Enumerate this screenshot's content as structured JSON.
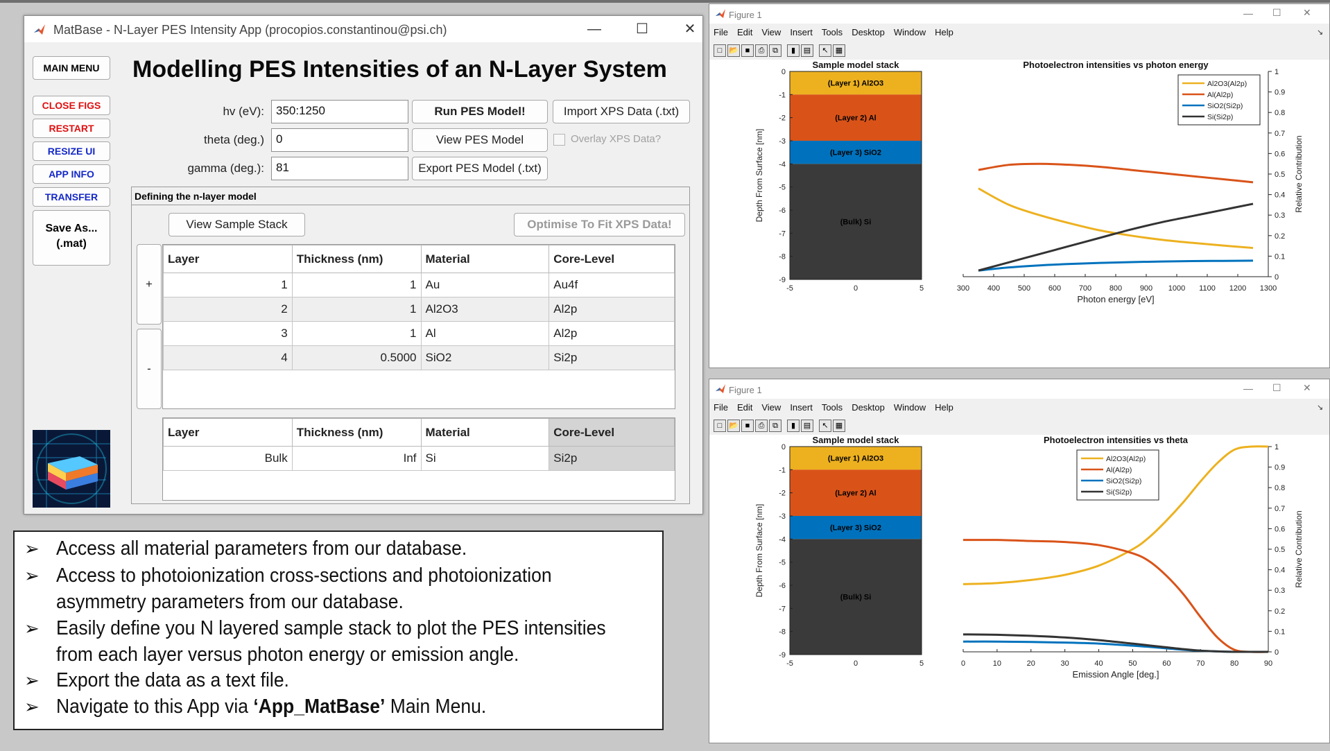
{
  "app": {
    "title": "MatBase - N-Layer PES Intensity App (procopios.constantinou@psi.ch)",
    "controls": {
      "minimize": "—",
      "maximize": "☐",
      "close": "✕"
    },
    "heading": "Modelling PES Intensities of an N-Layer System",
    "sidebar": [
      {
        "label": "MAIN MENU",
        "color": "#000000"
      },
      {
        "label": "CLOSE FIGS",
        "color": "#e01010"
      },
      {
        "label": "RESTART",
        "color": "#e01010"
      },
      {
        "label": "RESIZE UI",
        "color": "#1428c8"
      },
      {
        "label": "APP INFO",
        "color": "#1428c8"
      },
      {
        "label": "TRANSFER",
        "color": "#1428c8"
      },
      {
        "label": "Save As...",
        "label2": "(.mat)",
        "color": "#000000"
      }
    ],
    "fields": {
      "hv_label": "hv (eV):",
      "hv_value": "350:1250",
      "theta_label": "theta (deg.)",
      "theta_value": "0",
      "gamma_label": "gamma (deg.):",
      "gamma_value": "81"
    },
    "buttons": {
      "run": "Run PES Model!",
      "import": "Import XPS Data (.txt)",
      "view_model": "View PES Model",
      "overlay": "Overlay XPS Data?",
      "export": "Export PES Model (.txt)",
      "view_stack": "View Sample Stack",
      "optimise": "Optimise To Fit XPS Data!",
      "add": "+",
      "remove": "-"
    },
    "panel_title": "Defining the n-layer model",
    "table": {
      "headers": [
        "Layer",
        "Thickness (nm)",
        "Material",
        "Core-Level"
      ],
      "rows": [
        [
          "1",
          "1",
          "Au",
          "Au4f"
        ],
        [
          "2",
          "1",
          "Al2O3",
          "Al2p"
        ],
        [
          "3",
          "1",
          "Al",
          "Al2p"
        ],
        [
          "4",
          "0.5000",
          "SiO2",
          "Si2p"
        ]
      ]
    },
    "bulk_table": {
      "headers": [
        "Layer",
        "Thickness (nm)",
        "Material",
        "Core-Level"
      ],
      "row": [
        "Bulk",
        "Inf",
        "Si",
        "Si2p"
      ]
    }
  },
  "info": {
    "bullets": [
      "Access all material parameters from our database.",
      "Access to photoionization cross-sections and photoionization",
      "asymmetry parameters from our database.",
      "Easily define you N layered sample stack to plot the PES intensities",
      "from each layer versus photon energy or emission angle.",
      "Export the data as a text file."
    ],
    "last_prefix": "Navigate to this App via ",
    "last_bold": "‘App_MatBase’",
    "last_suffix": " Main Menu."
  },
  "figure_window": {
    "title": "Figure 1",
    "menus": [
      "File",
      "Edit",
      "View",
      "Insert",
      "Tools",
      "Desktop",
      "Window",
      "Help"
    ],
    "controls": {
      "minimize": "—",
      "maximize": "☐",
      "close": "✕"
    }
  },
  "chart_data": [
    {
      "type": "bar",
      "title": "Sample model stack",
      "ylabel": "Depth From Surface [nm]",
      "xlim": [
        -5,
        5
      ],
      "ylim": [
        -9,
        0
      ],
      "xticks": [
        "-5",
        "0",
        "5"
      ],
      "yticks": [
        "0",
        "-1",
        "-2",
        "-3",
        "-4",
        "-5",
        "-6",
        "-7",
        "-8",
        "-9"
      ],
      "layers": [
        {
          "label": "(Layer 1) Al2O3",
          "top": 0,
          "bottom": -1,
          "color": "#edb120"
        },
        {
          "label": "(Layer 2) Al",
          "top": -1,
          "bottom": -3,
          "color": "#d95319"
        },
        {
          "label": "(Layer 3) SiO2",
          "top": -3,
          "bottom": -4,
          "color": "#0072bd"
        },
        {
          "label": "(Bulk) Si",
          "top": -4,
          "bottom": -9,
          "color": "#3a3a3a"
        }
      ]
    },
    {
      "type": "line",
      "title": "Photoelectron intensities vs photon energy",
      "xlabel": "Photon energy [eV]",
      "ylabel": "Relative Contribution",
      "xlim": [
        300,
        1300
      ],
      "ylim": [
        0,
        1
      ],
      "xticks": [
        300,
        400,
        500,
        600,
        700,
        800,
        900,
        1000,
        1100,
        1200,
        1300
      ],
      "yticks": [
        0,
        0.1,
        0.2,
        0.3,
        0.4,
        0.5,
        0.6,
        0.7,
        0.8,
        0.9,
        1
      ],
      "legend": "top-right",
      "x": [
        350,
        450,
        550,
        650,
        750,
        850,
        950,
        1050,
        1150,
        1250
      ],
      "series": [
        {
          "name": "Al2O3(Al2p)",
          "color": "#edb120",
          "values": [
            0.43,
            0.35,
            0.3,
            0.26,
            0.225,
            0.2,
            0.18,
            0.165,
            0.152,
            0.14
          ]
        },
        {
          "name": "Al(Al2p)",
          "color": "#d95319",
          "values": [
            0.52,
            0.545,
            0.55,
            0.545,
            0.535,
            0.52,
            0.505,
            0.49,
            0.475,
            0.46
          ]
        },
        {
          "name": "SiO2(Si2p)",
          "color": "#0072bd",
          "values": [
            0.03,
            0.045,
            0.055,
            0.062,
            0.067,
            0.071,
            0.074,
            0.076,
            0.077,
            0.078
          ]
        },
        {
          "name": "Si(Si2p)",
          "color": "#333333",
          "values": [
            0.03,
            0.07,
            0.11,
            0.15,
            0.19,
            0.23,
            0.265,
            0.295,
            0.325,
            0.355
          ]
        }
      ]
    },
    {
      "type": "bar",
      "title": "Sample model stack",
      "ylabel": "Depth From Surface [nm]",
      "xlim": [
        -5,
        5
      ],
      "ylim": [
        -9,
        0
      ],
      "xticks": [
        "-5",
        "0",
        "5"
      ],
      "yticks": [
        "0",
        "-1",
        "-2",
        "-3",
        "-4",
        "-5",
        "-6",
        "-7",
        "-8",
        "-9"
      ],
      "layers": [
        {
          "label": "(Layer 1) Al2O3",
          "top": 0,
          "bottom": -1,
          "color": "#edb120"
        },
        {
          "label": "(Layer 2) Al",
          "top": -1,
          "bottom": -3,
          "color": "#d95319"
        },
        {
          "label": "(Layer 3) SiO2",
          "top": -3,
          "bottom": -4,
          "color": "#0072bd"
        },
        {
          "label": "(Bulk) Si",
          "top": -4,
          "bottom": -9,
          "color": "#3a3a3a"
        }
      ]
    },
    {
      "type": "line",
      "title": "Photoelectron intensities vs theta",
      "xlabel": "Emission Angle [deg.]",
      "ylabel": "Relative Contribution",
      "xlim": [
        0,
        90
      ],
      "ylim": [
        0,
        1
      ],
      "xticks": [
        0,
        10,
        20,
        30,
        40,
        50,
        60,
        70,
        80,
        90
      ],
      "yticks": [
        0,
        0.1,
        0.2,
        0.3,
        0.4,
        0.5,
        0.6,
        0.7,
        0.8,
        0.9,
        1
      ],
      "legend": "top-center",
      "x": [
        0,
        10,
        20,
        30,
        40,
        50,
        55,
        60,
        65,
        70,
        75,
        80,
        85,
        90
      ],
      "series": [
        {
          "name": "Al2O3(Al2p)",
          "color": "#edb120",
          "values": [
            0.33,
            0.335,
            0.35,
            0.375,
            0.42,
            0.5,
            0.56,
            0.64,
            0.73,
            0.83,
            0.92,
            0.985,
            1.0,
            1.0
          ]
        },
        {
          "name": "Al(Al2p)",
          "color": "#d95319",
          "values": [
            0.545,
            0.545,
            0.54,
            0.535,
            0.52,
            0.48,
            0.44,
            0.37,
            0.28,
            0.17,
            0.07,
            0.01,
            0.0,
            0.0
          ]
        },
        {
          "name": "SiO2(Si2p)",
          "color": "#0072bd",
          "values": [
            0.05,
            0.05,
            0.048,
            0.045,
            0.04,
            0.03,
            0.024,
            0.017,
            0.01,
            0.005,
            0.002,
            0.0,
            0.0,
            0.0
          ]
        },
        {
          "name": "Si(Si2p)",
          "color": "#333333",
          "values": [
            0.085,
            0.083,
            0.078,
            0.07,
            0.057,
            0.04,
            0.031,
            0.022,
            0.013,
            0.006,
            0.002,
            0.0,
            0.0,
            0.0
          ]
        }
      ]
    }
  ]
}
